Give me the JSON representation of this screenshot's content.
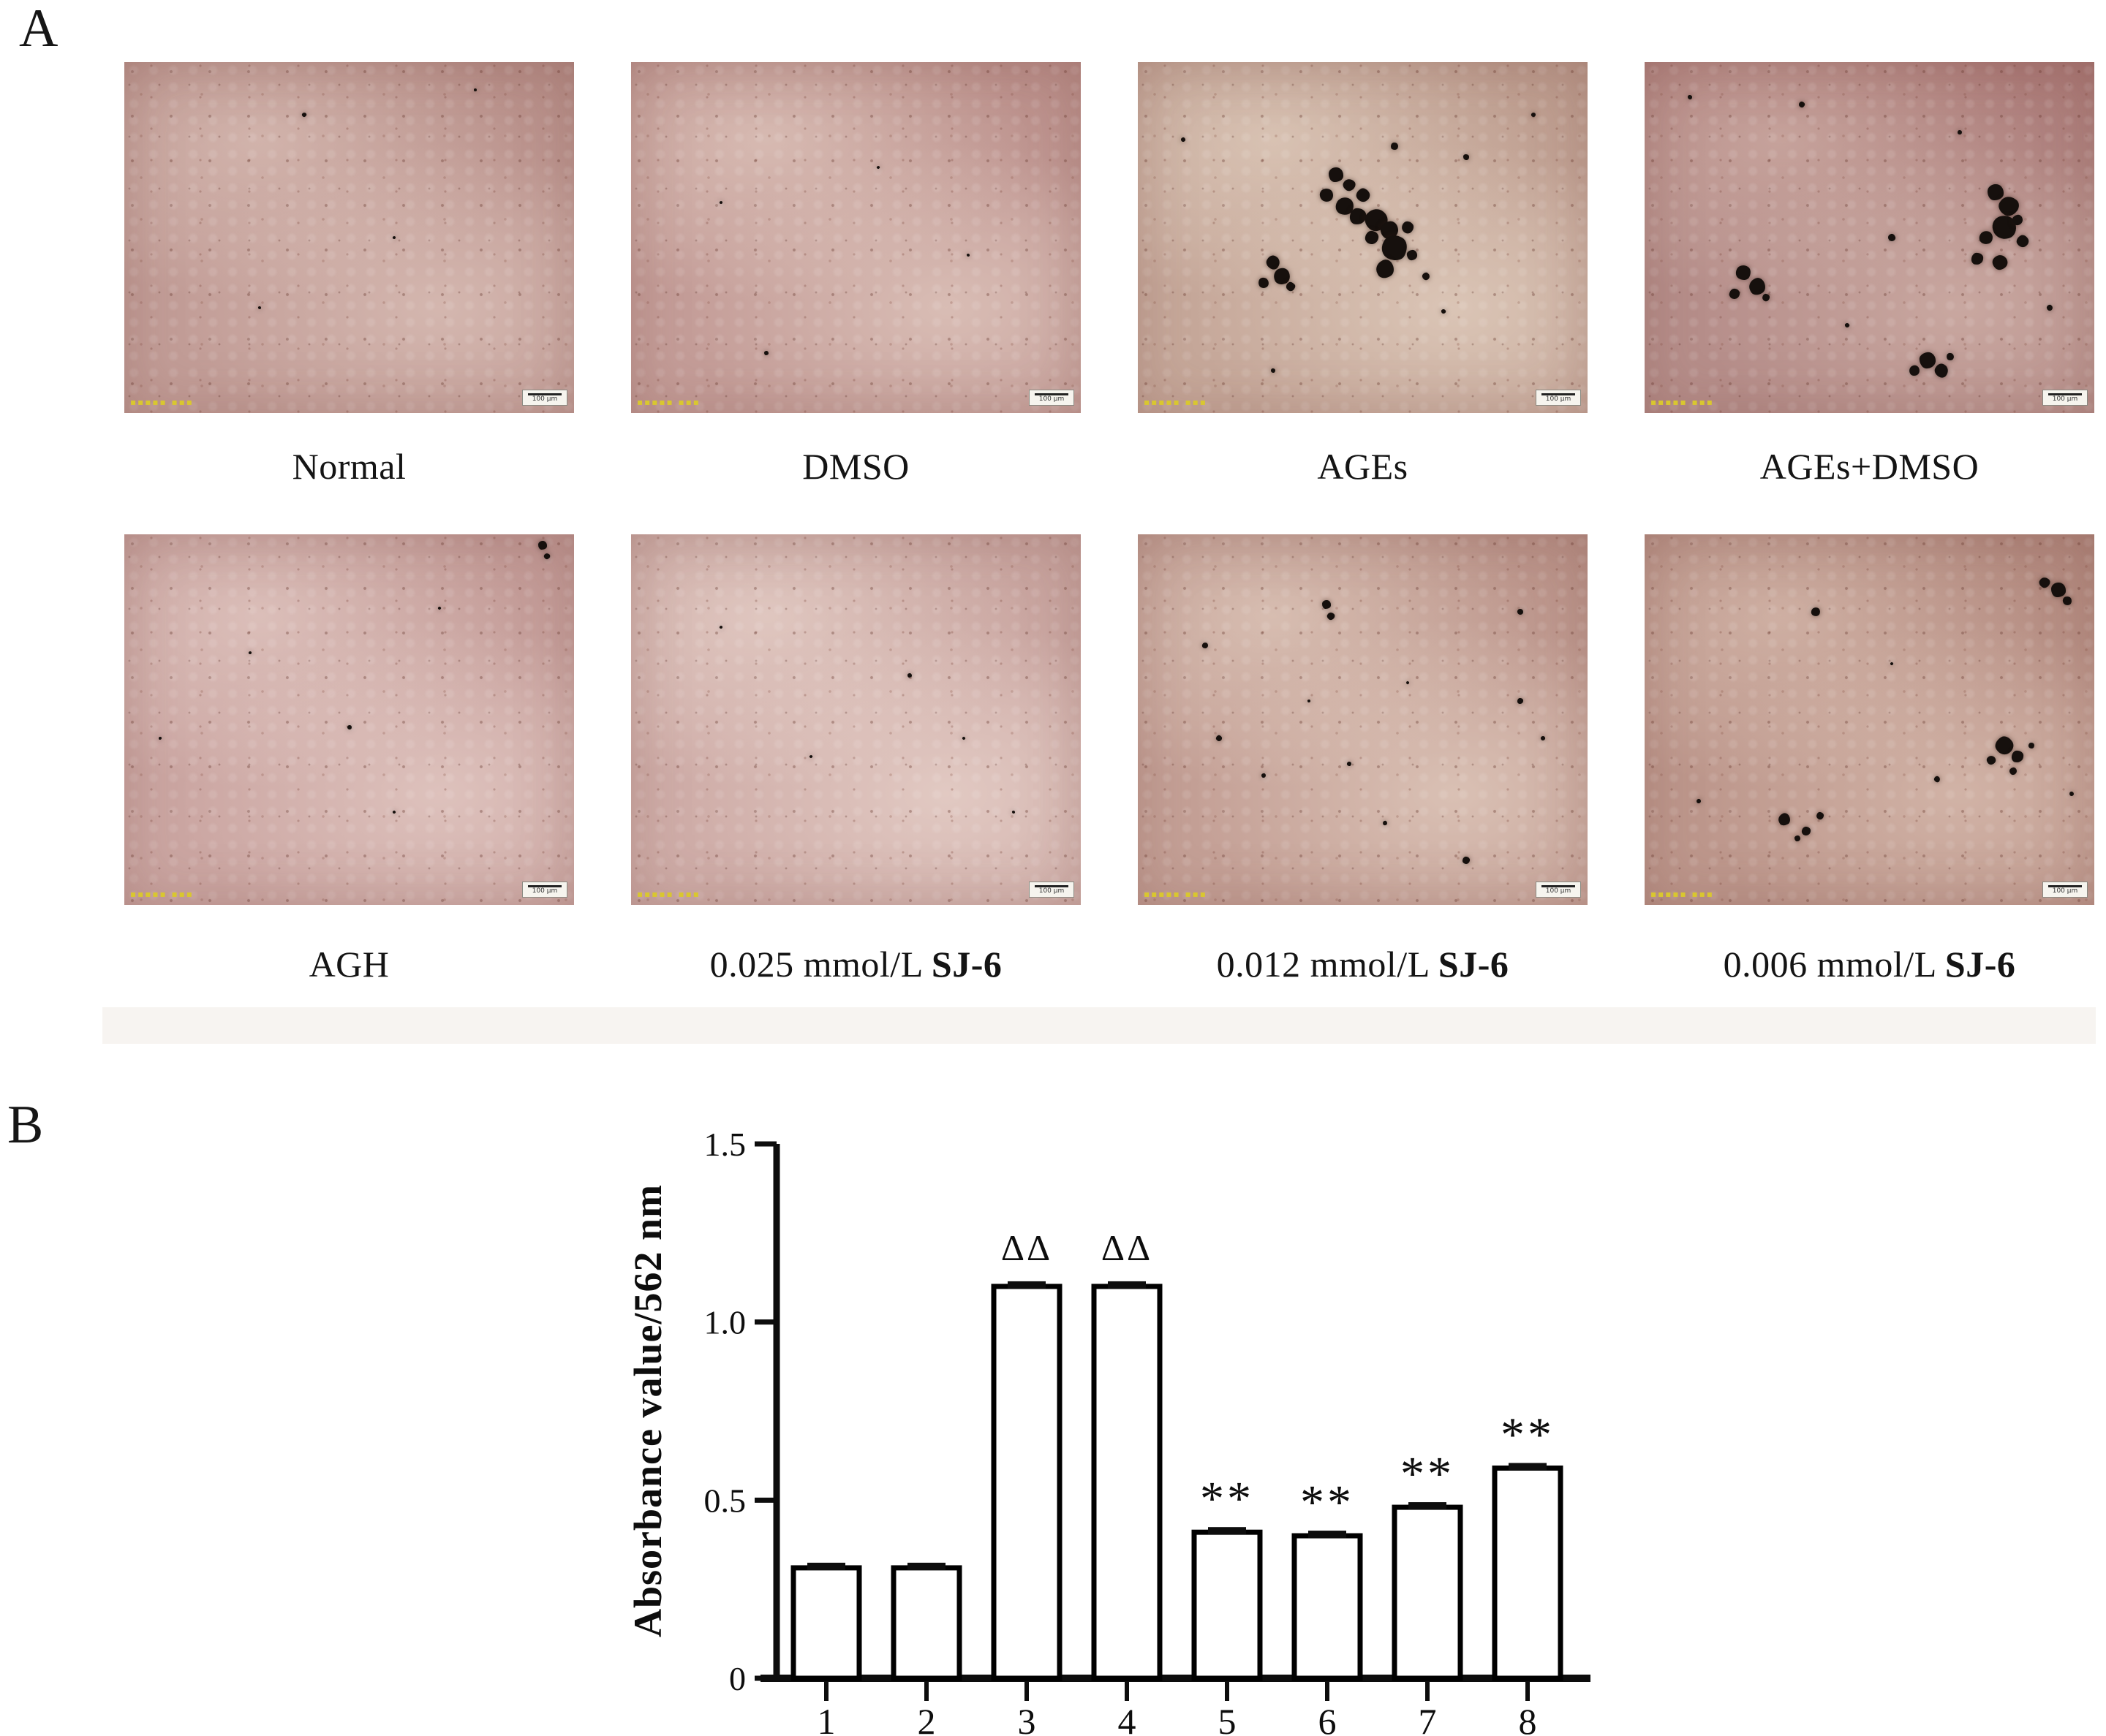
{
  "figure": {
    "panel_a_label": "A",
    "panel_b_label": "B"
  },
  "panel_a": {
    "scale_bar_text": "100 µm",
    "watermark_text": "▪▪▪▪▪ ▪▪▪",
    "rows": [
      {
        "cells": [
          {
            "label": "Normal",
            "label_bold": "",
            "base": "#c29d97",
            "light": "rgba(224,200,191,0.60)",
            "shade": "rgba(140,85,78,0.22)",
            "dots": [
              [
                78,
                8,
                2
              ],
              [
                40,
                15,
                3
              ],
              [
                30,
                70,
                2
              ],
              [
                60,
                50,
                2
              ]
            ]
          },
          {
            "label": "DMSO",
            "label_bold": "",
            "base": "#c49d98",
            "light": "rgba(228,206,196,0.65)",
            "shade": "rgba(150,90,85,0.22)",
            "dots": [
              [
                30,
                83,
                3
              ],
              [
                55,
                30,
                2
              ],
              [
                75,
                55,
                2
              ],
              [
                20,
                40,
                2
              ]
            ]
          },
          {
            "label": "AGEs",
            "label_bold": "",
            "base": "#c6a89a",
            "light": "rgba(232,216,200,0.60)",
            "shade": "rgba(140,95,80,0.18)",
            "dots": [
              [
                44,
                32,
                10
              ],
              [
                47,
                35,
                8
              ],
              [
                42,
                38,
                9
              ],
              [
                46,
                41,
                12
              ],
              [
                50,
                38,
                9
              ],
              [
                49,
                44,
                11
              ],
              [
                53,
                45,
                15
              ],
              [
                56,
                48,
                12
              ],
              [
                57,
                53,
                17
              ],
              [
                55,
                59,
                12
              ],
              [
                52,
                50,
                9
              ],
              [
                60,
                47,
                8
              ],
              [
                61,
                55,
                7
              ],
              [
                30,
                57,
                9
              ],
              [
                32,
                61,
                11
              ],
              [
                28,
                63,
                7
              ],
              [
                34,
                64,
                6
              ],
              [
                73,
                27,
                4
              ],
              [
                64,
                61,
                5
              ],
              [
                10,
                22,
                3
              ],
              [
                57,
                24,
                5
              ],
              [
                68,
                71,
                3
              ],
              [
                30,
                88,
                3
              ],
              [
                88,
                15,
                3
              ]
            ]
          },
          {
            "label": "AGEs+DMSO",
            "label_bold": "",
            "base": "#b68e8a",
            "light": "rgba(216,188,178,0.55)",
            "shade": "rgba(145,75,75,0.30)",
            "dots": [
              [
                78,
                37,
                11
              ],
              [
                81,
                41,
                13
              ],
              [
                80,
                47,
                16
              ],
              [
                76,
                50,
                9
              ],
              [
                84,
                51,
                8
              ],
              [
                74,
                56,
                8
              ],
              [
                79,
                57,
                10
              ],
              [
                83,
                45,
                7
              ],
              [
                22,
                60,
                10
              ],
              [
                25,
                64,
                11
              ],
              [
                20,
                66,
                7
              ],
              [
                27,
                67,
                5
              ],
              [
                63,
                85,
                11
              ],
              [
                66,
                88,
                9
              ],
              [
                60,
                88,
                7
              ],
              [
                68,
                84,
                5
              ],
              [
                35,
                12,
                4
              ],
              [
                10,
                10,
                3
              ],
              [
                90,
                70,
                4
              ],
              [
                55,
                50,
                5
              ],
              [
                70,
                20,
                3
              ],
              [
                45,
                75,
                3
              ]
            ]
          }
        ]
      },
      {
        "cells": [
          {
            "label": "AGH",
            "label_bold": "",
            "base": "#cba6a2",
            "light": "rgba(234,212,206,0.60)",
            "shade": "rgba(150,95,90,0.20)",
            "dots": [
              [
                93,
                3,
                6
              ],
              [
                94,
                6,
                4
              ],
              [
                50,
                52,
                3
              ],
              [
                28,
                32,
                2
              ],
              [
                60,
                75,
                2
              ],
              [
                8,
                55,
                2
              ],
              [
                70,
                20,
                2
              ]
            ]
          },
          {
            "label": "0.025 mmol/L",
            "label_bold": "SJ-6",
            "base": "#cfada8",
            "light": "rgba(238,220,212,0.60)",
            "shade": "rgba(150,100,92,0.16)",
            "dots": [
              [
                62,
                38,
                3
              ],
              [
                40,
                60,
                2
              ],
              [
                85,
                75,
                2
              ],
              [
                20,
                25,
                2
              ],
              [
                74,
                55,
                2
              ]
            ]
          },
          {
            "label": "0.012 mmol/L",
            "label_bold": "SJ-6",
            "base": "#c4a096",
            "light": "rgba(232,214,200,0.60)",
            "shade": "rgba(140,88,78,0.20)",
            "dots": [
              [
                42,
                19,
                6
              ],
              [
                43,
                22,
                5
              ],
              [
                85,
                21,
                4
              ],
              [
                15,
                30,
                4
              ],
              [
                18,
                55,
                4
              ],
              [
                85,
                45,
                4
              ],
              [
                90,
                55,
                3
              ],
              [
                28,
                65,
                3
              ],
              [
                47,
                62,
                3
              ],
              [
                55,
                78,
                3
              ],
              [
                73,
                88,
                5
              ],
              [
                60,
                40,
                2
              ],
              [
                38,
                45,
                2
              ]
            ]
          },
          {
            "label": "0.006 mmol/L",
            "label_bold": "SJ-6",
            "base": "#bd978c",
            "light": "rgba(226,202,188,0.55)",
            "shade": "rgba(135,82,72,0.22)",
            "dots": [
              [
                92,
                15,
                10
              ],
              [
                89,
                13,
                7
              ],
              [
                94,
                18,
                6
              ],
              [
                38,
                21,
                6
              ],
              [
                80,
                57,
                12
              ],
              [
                83,
                60,
                8
              ],
              [
                77,
                61,
                6
              ],
              [
                82,
                64,
                5
              ],
              [
                86,
                57,
                4
              ],
              [
                31,
                77,
                8
              ],
              [
                36,
                80,
                6
              ],
              [
                39,
                76,
                5
              ],
              [
                34,
                82,
                4
              ],
              [
                65,
                66,
                4
              ],
              [
                12,
                72,
                3
              ],
              [
                95,
                70,
                3
              ],
              [
                55,
                35,
                2
              ]
            ]
          }
        ]
      }
    ]
  },
  "chart_data": {
    "type": "bar",
    "title": "",
    "xlabel": "",
    "ylabel": "Absorbance value/562 nm",
    "categories": [
      "1",
      "2",
      "3",
      "4",
      "5",
      "6",
      "7",
      "8"
    ],
    "values": [
      0.31,
      0.31,
      1.1,
      1.1,
      0.41,
      0.4,
      0.48,
      0.59
    ],
    "errors": [
      0.01,
      0.01,
      0.01,
      0.01,
      0.01,
      0.01,
      0.01,
      0.01
    ],
    "annotations": [
      "",
      "",
      "ΔΔ",
      "ΔΔ",
      "**",
      "**",
      "**",
      "**"
    ],
    "ylim": [
      0,
      1.5
    ],
    "yticks": [
      0,
      0.5,
      1.0,
      1.5
    ],
    "ytick_labels": [
      "0",
      "0.5",
      "1.0",
      "1.5"
    ],
    "grid": false,
    "legend_position": "none",
    "bar_fill": "#ffffff",
    "bar_stroke": "#000000"
  }
}
